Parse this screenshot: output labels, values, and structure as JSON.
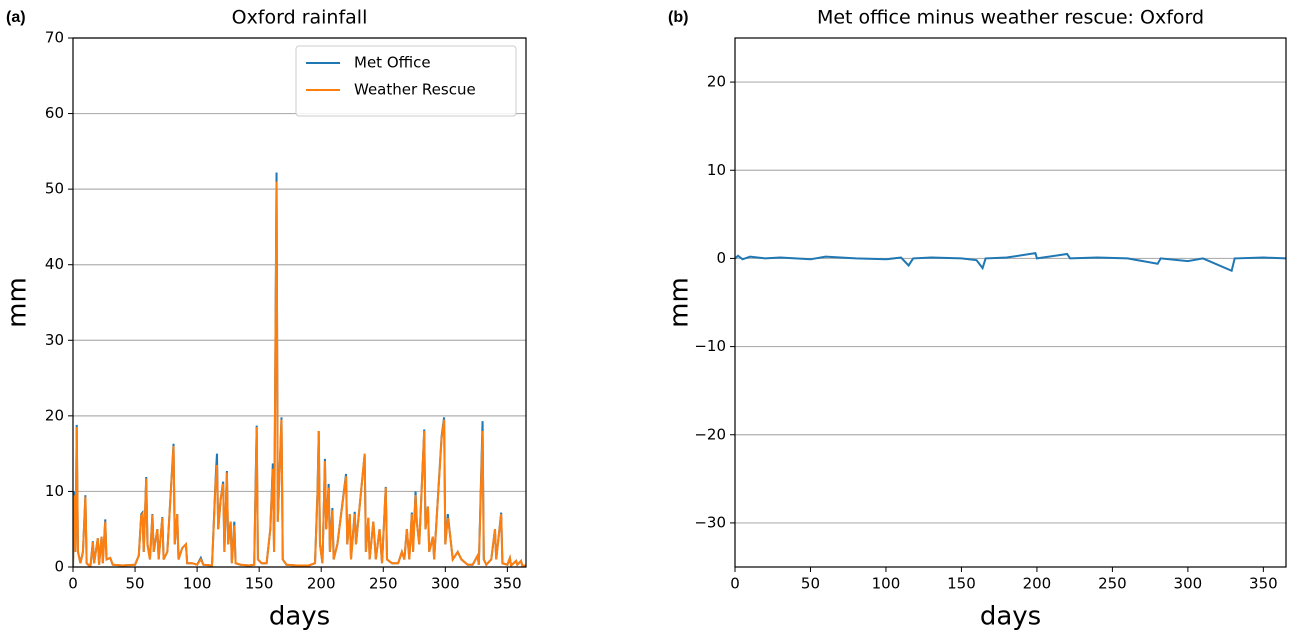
{
  "chart_data": [
    {
      "type": "line",
      "panel_label": "(a)",
      "title": "Oxford rainfall",
      "xlabel": "days",
      "ylabel": "mm",
      "x": [
        0,
        1,
        2,
        3,
        4,
        6,
        8,
        10,
        11,
        14,
        16,
        17,
        20,
        21,
        23,
        24,
        26,
        27,
        30,
        32,
        40,
        50,
        53,
        55,
        56,
        57,
        59,
        60,
        62,
        64,
        65,
        68,
        69,
        72,
        73,
        76,
        81,
        82,
        84,
        85,
        88,
        91,
        92,
        96,
        100,
        103,
        105,
        112,
        115,
        116,
        117,
        119,
        121,
        122,
        124,
        125,
        127,
        128,
        130,
        131,
        135,
        142,
        146,
        147,
        148,
        149,
        152,
        156,
        159,
        161,
        162,
        164,
        165,
        168,
        169,
        172,
        180,
        190,
        195,
        197,
        198,
        199,
        201,
        203,
        204,
        206,
        207,
        209,
        210,
        213,
        220,
        221,
        223,
        224,
        227,
        228,
        235,
        236,
        238,
        239,
        242,
        244,
        247,
        249,
        252,
        253,
        257,
        262,
        265,
        267,
        269,
        271,
        273,
        274,
        276,
        277,
        279,
        283,
        284,
        286,
        287,
        290,
        291,
        297,
        299,
        300,
        302,
        304,
        306,
        310,
        313,
        318,
        322,
        326,
        327,
        330,
        331,
        333,
        337,
        340,
        341,
        345,
        346,
        350,
        352,
        353,
        357,
        358,
        361,
        362,
        365
      ],
      "series": [
        {
          "name": "Met Office",
          "color": "#1f77b4",
          "values": [
            0,
            10,
            2,
            18.8,
            2,
            0.5,
            2,
            9.5,
            0.5,
            0,
            3.4,
            0.5,
            3.8,
            0.3,
            4,
            0.5,
            6.3,
            1,
            1.2,
            0.3,
            0.2,
            0.3,
            1.5,
            7,
            7.2,
            2,
            11.9,
            3,
            1,
            7,
            2,
            5,
            1,
            6.6,
            1,
            2,
            16.3,
            3,
            7,
            1,
            2.5,
            3,
            0.5,
            0.5,
            0.3,
            1.2,
            0.3,
            0.2,
            12,
            15,
            5,
            9,
            11.3,
            2,
            12.7,
            3,
            6,
            0.5,
            6,
            0.5,
            0.3,
            0.2,
            0.3,
            10,
            18.7,
            1,
            0.5,
            0.5,
            5,
            13.7,
            2,
            52.2,
            6,
            19.8,
            1,
            0.3,
            0.2,
            0.2,
            0.5,
            10,
            18,
            3,
            0.5,
            14.3,
            5,
            11,
            2,
            7.8,
            1,
            3,
            12.3,
            3,
            7,
            1,
            7.3,
            3,
            14.9,
            2,
            6.5,
            1,
            6,
            1,
            5,
            0.5,
            10.6,
            1,
            0.5,
            0.5,
            2,
            1,
            5,
            1,
            7.2,
            2,
            10,
            6,
            3,
            18.2,
            5,
            8,
            2,
            4,
            1,
            17.3,
            19.8,
            3,
            7,
            4,
            1,
            2,
            1,
            0.3,
            0.3,
            1.5,
            0.3,
            19.3,
            1,
            0.3,
            1,
            5,
            1,
            7.2,
            0.5,
            0.3,
            1.2,
            0.2,
            0.8,
            0.3,
            0.8,
            0.2,
            0.2
          ]
        },
        {
          "name": "Weather Rescue",
          "color": "#ff7f0e",
          "values": [
            0,
            9.5,
            2,
            18.5,
            2,
            0.5,
            2,
            9.3,
            0.5,
            0,
            3.3,
            0.5,
            3.8,
            0.3,
            4,
            0.5,
            6,
            1,
            1.2,
            0.3,
            0.2,
            0.3,
            1.5,
            6.8,
            7,
            2,
            11.7,
            3,
            1,
            6.9,
            2,
            5,
            1,
            6.5,
            1,
            2,
            16,
            3,
            7,
            1,
            2.5,
            3,
            0.5,
            0.5,
            0.3,
            1,
            0.3,
            0.2,
            11.5,
            13.5,
            5,
            9,
            11,
            2,
            12.5,
            3,
            6,
            0.5,
            5.5,
            0.5,
            0.3,
            0.2,
            0.3,
            9,
            18.5,
            1,
            0.5,
            0.5,
            5,
            13,
            2,
            51,
            6,
            19.5,
            1,
            0.3,
            0.2,
            0.2,
            0.5,
            9.5,
            18,
            3,
            0.5,
            14,
            5,
            10.5,
            2,
            7.5,
            1,
            3,
            12,
            3,
            7,
            1,
            7,
            3,
            15,
            2,
            6.5,
            1,
            6,
            1,
            5,
            0.5,
            10.5,
            1,
            0.5,
            0.5,
            2,
            1,
            5,
            1,
            7,
            2,
            9.5,
            6,
            3,
            18,
            5,
            8,
            2,
            4,
            1,
            17,
            19.5,
            3,
            6.5,
            4,
            1,
            2,
            1,
            0.3,
            0.3,
            1.5,
            0.3,
            18,
            1,
            0.3,
            1,
            5,
            1,
            7,
            0.5,
            0.3,
            1.2,
            0.2,
            0.8,
            0.3,
            0.8,
            0.2,
            0.2
          ]
        }
      ],
      "xlim": [
        0,
        365
      ],
      "ylim": [
        0,
        70
      ],
      "xticks": [
        0,
        50,
        100,
        150,
        200,
        250,
        300,
        350
      ],
      "yticks": [
        0,
        10,
        20,
        30,
        40,
        50,
        60,
        70
      ],
      "grid": "y",
      "legend": "upper right"
    },
    {
      "type": "line",
      "panel_label": "(b)",
      "title": "Met office minus weather rescue: Oxford",
      "xlabel": "days",
      "ylabel": "mm",
      "x": [
        0,
        2,
        5,
        10,
        20,
        30,
        50,
        60,
        80,
        100,
        110,
        115,
        118,
        130,
        150,
        160,
        164,
        166,
        180,
        199,
        200,
        220,
        222,
        240,
        260,
        280,
        282,
        300,
        310,
        329,
        331,
        350,
        365
      ],
      "series": [
        {
          "color": "#1f77b4",
          "values": [
            0,
            0.3,
            -0.1,
            0.2,
            0,
            0.1,
            -0.1,
            0.2,
            0,
            -0.1,
            0.1,
            -0.8,
            0,
            0.1,
            0,
            -0.2,
            -1.1,
            0,
            0.1,
            0.6,
            0,
            0.5,
            0,
            0.1,
            0,
            -0.6,
            0,
            -0.3,
            0,
            -1.4,
            0,
            0.1,
            0
          ]
        }
      ],
      "xlim": [
        0,
        365
      ],
      "ylim": [
        -35,
        25
      ],
      "xticks": [
        0,
        50,
        100,
        150,
        200,
        250,
        300,
        350
      ],
      "yticks": [
        {
          "value": -30,
          "label": "−30"
        },
        {
          "value": -20,
          "label": "−20"
        },
        {
          "value": -10,
          "label": "−10"
        },
        0,
        10,
        20
      ],
      "grid": "y"
    }
  ]
}
